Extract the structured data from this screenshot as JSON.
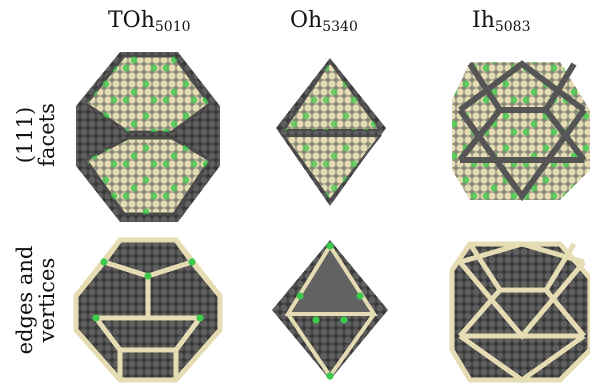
{
  "columns": [
    {
      "base": "TOh",
      "sub": "5010"
    },
    {
      "base": "Oh",
      "sub": "5340"
    },
    {
      "base": "Ih",
      "sub": "5083"
    }
  ],
  "rows": [
    {
      "lines": [
        "(111)",
        "facets"
      ]
    },
    {
      "lines": [
        "edges and",
        "vertices"
      ]
    }
  ],
  "colors": {
    "dark_atom": "#5a5a5a",
    "light_atom": "#e6dcb4",
    "green_atom": "#3cc84a"
  }
}
